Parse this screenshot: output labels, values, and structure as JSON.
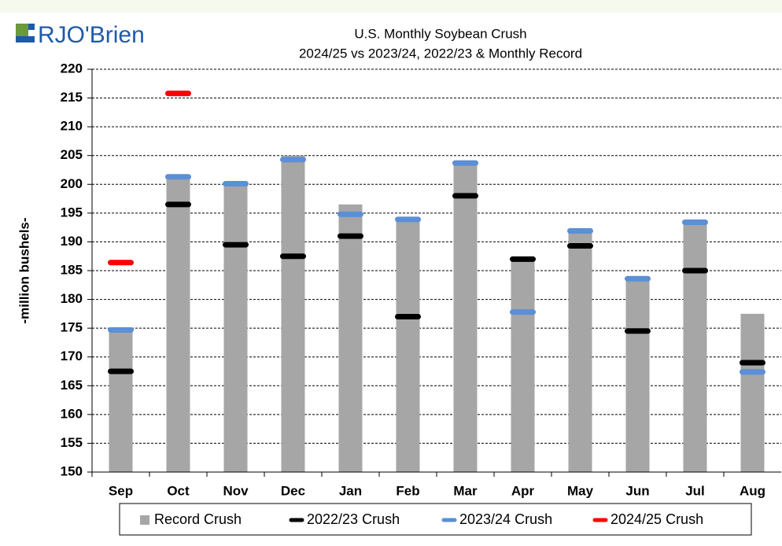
{
  "brand": "RJO'Brien",
  "chart_data": {
    "type": "bar",
    "title": "U.S. Monthly Soybean Crush",
    "subtitle": "2024/25 vs 2023/24, 2022/23 & Monthly Record",
    "y_label": "-million bushels-",
    "categories": [
      "Sep",
      "Oct",
      "Nov",
      "Dec",
      "Jan",
      "Feb",
      "Mar",
      "Apr",
      "May",
      "Jun",
      "Jul",
      "Aug"
    ],
    "series": [
      {
        "name": "Record Crush",
        "color": "#a6a6a6",
        "values": [
          175,
          201.5,
          200,
          205,
          196.5,
          194,
          204,
          187,
          192,
          184,
          193.5,
          177.5
        ]
      },
      {
        "name": "2022/23 Crush",
        "color": "#000000",
        "values": [
          167.5,
          196.5,
          189.5,
          187.5,
          191,
          177,
          198,
          187,
          189.3,
          174.5,
          185,
          169
        ]
      },
      {
        "name": "2023/24 Crush",
        "color": "#5b8fd6",
        "values": [
          174.7,
          201.3,
          200.1,
          204.3,
          194.8,
          193.9,
          203.7,
          177.8,
          191.9,
          183.6,
          193.4,
          167.4
        ]
      },
      {
        "name": "2024/25 Crush",
        "color": "#ff0000",
        "values": [
          186.4,
          215.8,
          null,
          null,
          null,
          null,
          null,
          null,
          null,
          null,
          null,
          null
        ]
      }
    ],
    "ylim": [
      150,
      220
    ],
    "yticks": [
      150,
      155,
      160,
      165,
      170,
      175,
      180,
      185,
      190,
      195,
      200,
      205,
      210,
      215,
      220
    ],
    "grid": true
  }
}
